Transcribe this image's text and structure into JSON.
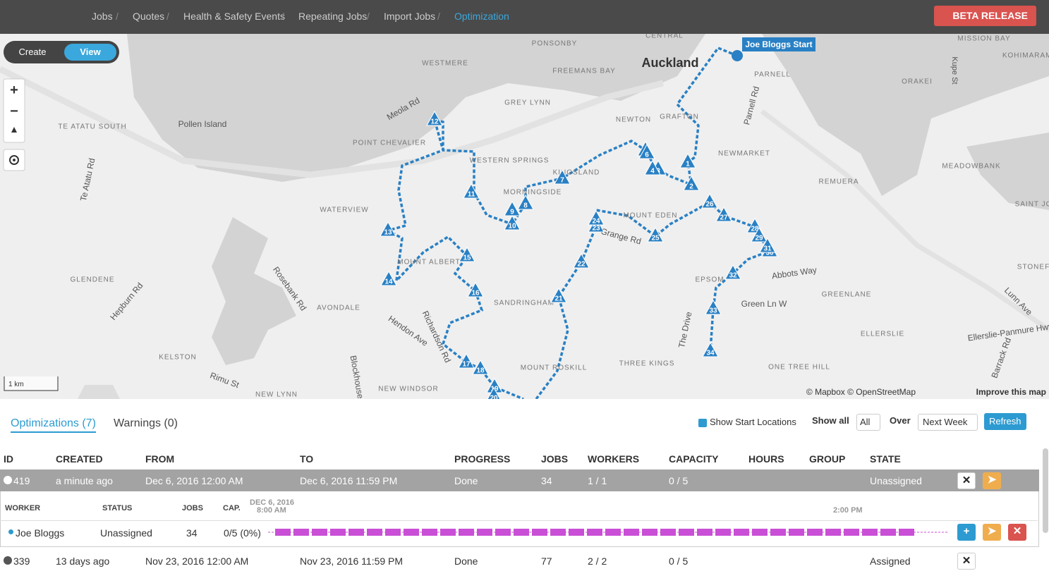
{
  "nav": {
    "items": [
      "Jobs",
      "Quotes",
      "Health & Safety Events",
      "Repeating Jobs",
      "Import Jobs",
      "Optimization"
    ],
    "beta": "BETA RELEASE"
  },
  "map": {
    "mode_toggle": [
      "Create",
      "View"
    ],
    "start_label": "Joe Bloggs Start",
    "place_labels": [
      "WESTMERE",
      "PONSONBY",
      "CENTRAL",
      "FREEMANS BAY",
      "Auckland",
      "PARNELL",
      "MISSION BAY",
      "KOHIMARAMA",
      "ORAKEI",
      "GREY LYNN",
      "GRAFTON",
      "NEWTON",
      "Meola Rd",
      "Pollen Island",
      "TE ATATU SOUTH",
      "POINT CHEVALIER",
      "WESTERN SPRINGS",
      "KINGSLAND",
      "NEWMARKET",
      "MEADOWBANK",
      "REMUERA",
      "Te Atatu Rd",
      "MORNINGSIDE",
      "WATERVIEW",
      "MOUNT EDEN",
      "Grange Rd",
      "MOUNT ALBERT",
      "Abbots Way",
      "GLENDENE",
      "Hepburn Rd",
      "Rosebank Rd",
      "AVONDALE",
      "SANDRINGHAM",
      "EPSOM",
      "Green Ln W",
      "GREENLANE",
      "Hendon Ave",
      "Richardson Rd",
      "The Drive",
      "ELLERSLIE",
      "Ellerslie-Panmure Hwy",
      "KELSTON",
      "Blockhouse",
      "THREE KINGS",
      "ONE TREE HILL",
      "MOUNT ROSKILL",
      "NEW WINDSOR",
      "NEW LYNN",
      "Rimu St",
      "Parnell Rd",
      "Lunn Ave",
      "Barrack Rd",
      "Kupe St",
      "STONEF",
      "SAINT JO"
    ],
    "stop_labels": [
      "1",
      "2",
      "3",
      "4",
      "5",
      "6",
      "7",
      "8",
      "9",
      "10",
      "11",
      "12",
      "13",
      "14",
      "15",
      "16",
      "17",
      "18",
      "19",
      "20",
      "21",
      "22",
      "23",
      "24",
      "25",
      "26",
      "27",
      "28",
      "29",
      "30",
      "31",
      "32",
      "33",
      "34"
    ],
    "scale": "1 km",
    "attribution": "© Mapbox © OpenStreetMap",
    "improve_link": "Improve this map"
  },
  "panel": {
    "tabs": [
      "Optimizations (7)",
      "Warnings (0)"
    ],
    "show_start_locations": "Show Start Locations",
    "show_all": "Show all",
    "show_all_value": "All",
    "over": "Over",
    "over_value": "Next Week",
    "refresh": "Refresh"
  },
  "table": {
    "columns": [
      "ID",
      "CREATED",
      "FROM",
      "TO",
      "PROGRESS",
      "JOBS",
      "WORKERS",
      "CAPACITY",
      "HOURS",
      "GROUP",
      "STATE"
    ],
    "rows": [
      [
        "419",
        "a minute ago",
        "Dec 6, 2016 12:00 AM",
        "Dec 6, 2016 11:59 PM",
        "Done",
        "34",
        "1 / 1",
        "0 / 5",
        "",
        "",
        "Unassigned"
      ],
      [
        "339",
        "13 days ago",
        "Nov 23, 2016 12:00 AM",
        "Nov 23, 2016 11:59 PM",
        "Done",
        "77",
        "2 / 2",
        "0 / 5",
        "",
        "",
        "Assigned"
      ]
    ]
  },
  "detail": {
    "columns": [
      "WORKER",
      "STATUS",
      "JOBS",
      "CAP."
    ],
    "date": "DEC 6, 2016",
    "start_time": "8:00 AM",
    "end_time": "2:00 PM",
    "row": [
      "Joe Bloggs",
      "Unassigned",
      "34",
      "0/5 (0%)"
    ]
  }
}
